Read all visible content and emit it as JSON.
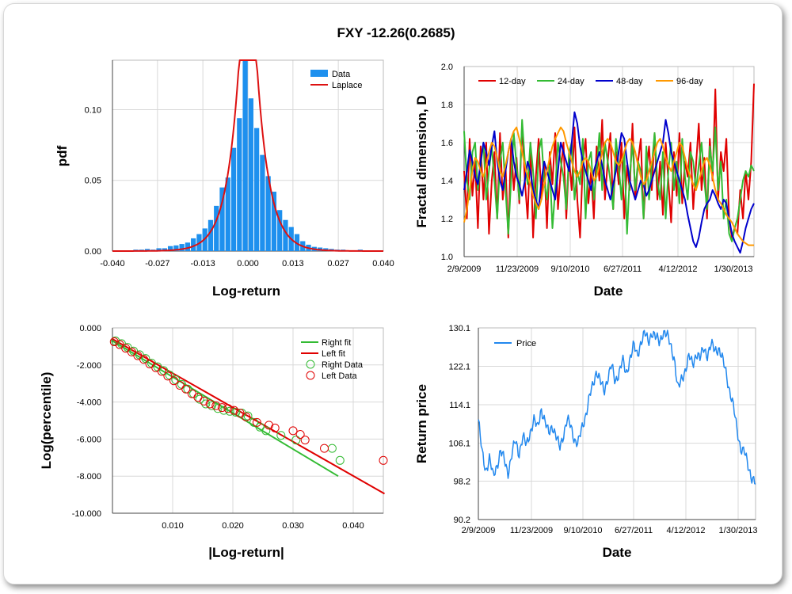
{
  "title": "FXY -12.26(0.2685)",
  "chart_data": [
    {
      "type": "bar",
      "xlabel": "Log-return",
      "ylabel": "pdf",
      "xlim": [
        -0.04,
        0.04
      ],
      "ylim": [
        0,
        0.135
      ],
      "xticks": [
        "-0.040",
        "-0.027",
        "-0.013",
        "0.000",
        "0.013",
        "0.027",
        "0.040"
      ],
      "yticks": [
        "0.00",
        "0.05",
        "0.10"
      ],
      "legend": [
        "Data",
        "Laplace"
      ],
      "bin_centers": [
        -0.0331,
        -0.0314,
        -0.0297,
        -0.028,
        -0.0263,
        -0.0246,
        -0.0229,
        -0.0212,
        -0.0195,
        -0.0178,
        -0.0161,
        -0.0144,
        -0.0127,
        -0.011,
        -0.0093,
        -0.0076,
        -0.0059,
        -0.0042,
        -0.0025,
        -0.0008,
        0.0009,
        0.0026,
        0.0043,
        0.006,
        0.0077,
        0.0094,
        0.0111,
        0.0128,
        0.0145,
        0.0162,
        0.0179,
        0.0196,
        0.0213,
        0.023,
        0.0247,
        0.0264,
        0.0281,
        0.0298,
        0.0315,
        0.0332,
        0.0349
      ],
      "values": [
        0.001,
        0.001,
        0.0015,
        0.001,
        0.002,
        0.002,
        0.0035,
        0.004,
        0.005,
        0.006,
        0.009,
        0.012,
        0.016,
        0.022,
        0.032,
        0.045,
        0.052,
        0.073,
        0.094,
        0.136,
        0.108,
        0.087,
        0.068,
        0.053,
        0.042,
        0.029,
        0.022,
        0.017,
        0.012,
        0.007,
        0.0045,
        0.003,
        0.0025,
        0.002,
        0.0015,
        0.001,
        0.001,
        0.0005,
        0.0005,
        0.001,
        0.0005
      ],
      "laplace": {
        "mu": 0.0,
        "b": 0.0037
      }
    },
    {
      "type": "line",
      "xlabel": "Date",
      "ylabel": "Fractal dimension, D",
      "ylim": [
        1.0,
        2.0
      ],
      "yticks": [
        "1.0",
        "1.2",
        "1.4",
        "1.6",
        "1.8",
        "2.0"
      ],
      "xticks": [
        "2/9/2009",
        "11/23/2009",
        "9/10/2010",
        "6/27/2011",
        "4/12/2012",
        "1/30/2013"
      ],
      "series": [
        {
          "name": "12-day",
          "color": "#e00000",
          "values": [
            1.45,
            1.2,
            1.62,
            1.32,
            1.5,
            1.15,
            1.58,
            1.3,
            1.6,
            1.12,
            1.4,
            1.55,
            1.2,
            1.65,
            1.3,
            1.48,
            1.1,
            1.6,
            1.35,
            1.52,
            1.28,
            1.7,
            1.4,
            1.2,
            1.6,
            1.1,
            1.42,
            1.62,
            1.3,
            1.5,
            1.15,
            1.55,
            1.38,
            1.65,
            1.25,
            1.45,
            1.6,
            1.2,
            1.52,
            1.35,
            1.68,
            1.3,
            1.1,
            1.5,
            1.62,
            1.28,
            1.45,
            1.2,
            1.58,
            1.4,
            1.72,
            1.3,
            1.5,
            1.65,
            1.25,
            1.55,
            1.38,
            1.6,
            1.2,
            1.48,
            1.35,
            1.7,
            1.3,
            1.5,
            1.62,
            1.2,
            1.45,
            1.58,
            1.35,
            1.65,
            1.3,
            1.5,
            1.22,
            1.6,
            1.4,
            1.18,
            1.55,
            1.32,
            1.65,
            1.28,
            1.5,
            1.42,
            1.6,
            1.25,
            1.48,
            1.7,
            1.35,
            1.52,
            1.2,
            1.62,
            1.4,
            1.88,
            1.3,
            1.55,
            1.45,
            1.62,
            1.2,
            1.1,
            1.15,
            1.12,
            1.35,
            1.2,
            1.45,
            1.3,
            1.5,
            1.91
          ]
        },
        {
          "name": "24-day",
          "color": "#33bb33",
          "values": [
            1.66,
            1.4,
            1.3,
            1.55,
            1.6,
            1.35,
            1.48,
            1.6,
            1.3,
            1.45,
            1.58,
            1.4,
            1.2,
            1.5,
            1.6,
            1.35,
            1.12,
            1.4,
            1.65,
            1.48,
            1.3,
            1.72,
            1.5,
            1.38,
            1.6,
            1.45,
            1.2,
            1.55,
            1.62,
            1.4,
            1.3,
            1.48,
            1.15,
            1.35,
            1.6,
            1.5,
            1.42,
            1.25,
            1.55,
            1.6,
            1.3,
            1.45,
            1.38,
            1.62,
            1.2,
            1.5,
            1.55,
            1.3,
            1.45,
            1.65,
            1.35,
            1.6,
            1.5,
            1.4,
            1.25,
            1.62,
            1.48,
            1.3,
            1.55,
            1.12,
            1.42,
            1.6,
            1.35,
            1.5,
            1.45,
            1.2,
            1.58,
            1.3,
            1.48,
            1.65,
            1.4,
            1.3,
            1.55,
            1.2,
            1.45,
            1.6,
            1.35,
            1.5,
            1.28,
            1.62,
            1.42,
            1.3,
            1.55,
            1.5,
            1.35,
            1.48,
            1.6,
            1.4,
            1.25,
            1.58,
            1.45,
            1.68,
            1.35,
            1.5,
            1.2,
            1.3,
            1.12,
            1.08,
            1.15,
            1.2,
            1.3,
            1.4,
            1.45,
            1.42,
            1.48,
            1.45
          ]
        },
        {
          "name": "48-day",
          "color": "#0000cc",
          "values": [
            1.35,
            1.45,
            1.56,
            1.5,
            1.42,
            1.38,
            1.5,
            1.6,
            1.55,
            1.48,
            1.58,
            1.66,
            1.5,
            1.4,
            1.35,
            1.45,
            1.55,
            1.62,
            1.5,
            1.42,
            1.38,
            1.32,
            1.4,
            1.5,
            1.45,
            1.35,
            1.3,
            1.25,
            1.4,
            1.5,
            1.45,
            1.4,
            1.35,
            1.3,
            1.45,
            1.6,
            1.55,
            1.5,
            1.45,
            1.6,
            1.76,
            1.7,
            1.58,
            1.5,
            1.45,
            1.4,
            1.35,
            1.45,
            1.5,
            1.55,
            1.48,
            1.4,
            1.35,
            1.3,
            1.38,
            1.45,
            1.55,
            1.65,
            1.62,
            1.5,
            1.4,
            1.35,
            1.3,
            1.35,
            1.4,
            1.38,
            1.32,
            1.35,
            1.4,
            1.45,
            1.5,
            1.55,
            1.6,
            1.72,
            1.65,
            1.55,
            1.5,
            1.45,
            1.4,
            1.35,
            1.3,
            1.22,
            1.15,
            1.08,
            1.05,
            1.1,
            1.18,
            1.25,
            1.28,
            1.3,
            1.35,
            1.32,
            1.28,
            1.25,
            1.3,
            1.28,
            1.2,
            1.12,
            1.08,
            1.05,
            1.02,
            1.08,
            1.15,
            1.2,
            1.25,
            1.28
          ]
        },
        {
          "name": "96-day",
          "color": "#ff9900",
          "values": [
            1.18,
            1.25,
            1.35,
            1.45,
            1.52,
            1.5,
            1.45,
            1.42,
            1.48,
            1.55,
            1.6,
            1.58,
            1.52,
            1.45,
            1.42,
            1.48,
            1.55,
            1.62,
            1.66,
            1.68,
            1.62,
            1.55,
            1.48,
            1.42,
            1.38,
            1.32,
            1.28,
            1.25,
            1.3,
            1.38,
            1.45,
            1.52,
            1.58,
            1.62,
            1.65,
            1.68,
            1.66,
            1.6,
            1.55,
            1.5,
            1.45,
            1.42,
            1.45,
            1.5,
            1.52,
            1.5,
            1.45,
            1.4,
            1.42,
            1.48,
            1.55,
            1.6,
            1.62,
            1.6,
            1.55,
            1.5,
            1.48,
            1.5,
            1.55,
            1.6,
            1.62,
            1.6,
            1.55,
            1.48,
            1.42,
            1.38,
            1.4,
            1.45,
            1.5,
            1.55,
            1.6,
            1.62,
            1.58,
            1.52,
            1.48,
            1.45,
            1.5,
            1.55,
            1.6,
            1.58,
            1.52,
            1.46,
            1.42,
            1.38,
            1.35,
            1.4,
            1.45,
            1.5,
            1.52,
            1.48,
            1.42,
            1.35,
            1.3,
            1.28,
            1.25,
            1.22,
            1.2,
            1.18,
            1.15,
            1.12,
            1.1,
            1.08,
            1.07,
            1.06,
            1.06,
            1.06
          ]
        }
      ]
    },
    {
      "type": "scatter",
      "xlabel": "|Log-return|",
      "ylabel": "Log(percentile)",
      "xlim": [
        0.0,
        0.045
      ],
      "ylim": [
        -10.0,
        0.0
      ],
      "xticks": [
        "0.010",
        "0.020",
        "0.030",
        "0.040"
      ],
      "yticks": [
        "0.000",
        "-2.000",
        "-4.000",
        "-6.000",
        "-8.000",
        "-10.000"
      ],
      "legend": [
        "Right fit",
        "Left fit",
        "Right Data",
        "Left Data"
      ],
      "right_fit": {
        "x": [
          0.0,
          0.0375
        ],
        "y": [
          -0.7,
          -8.0
        ],
        "color": "#33bb33"
      },
      "left_fit": {
        "x": [
          0.0,
          0.0452
        ],
        "y": [
          -0.6,
          -8.95
        ],
        "color": "#e00000"
      },
      "right_data": {
        "x": [
          0.0005,
          0.0015,
          0.0025,
          0.0035,
          0.0045,
          0.0055,
          0.0065,
          0.0075,
          0.0085,
          0.0095,
          0.0105,
          0.0115,
          0.0125,
          0.0135,
          0.0145,
          0.0155,
          0.0165,
          0.0175,
          0.0185,
          0.0195,
          0.0205,
          0.0215,
          0.0225,
          0.0235,
          0.0245,
          0.0255,
          0.028,
          0.0305,
          0.0365,
          0.0378
        ],
        "y": [
          -0.7,
          -0.85,
          -1.05,
          -1.25,
          -1.45,
          -1.65,
          -1.9,
          -2.1,
          -2.3,
          -2.55,
          -2.8,
          -3.05,
          -3.3,
          -3.55,
          -3.85,
          -4.1,
          -4.2,
          -4.35,
          -4.45,
          -4.5,
          -4.55,
          -4.6,
          -4.75,
          -5.1,
          -5.35,
          -5.55,
          -5.8,
          -6.05,
          -6.5,
          -7.15
        ]
      },
      "left_data": {
        "x": [
          0.0003,
          0.0012,
          0.0022,
          0.0032,
          0.0042,
          0.0052,
          0.0062,
          0.0072,
          0.0082,
          0.0092,
          0.0102,
          0.0112,
          0.0122,
          0.0132,
          0.0142,
          0.0152,
          0.0162,
          0.0172,
          0.0182,
          0.0192,
          0.0202,
          0.0212,
          0.0222,
          0.024,
          0.026,
          0.027,
          0.03,
          0.0312,
          0.032,
          0.0352,
          0.045
        ],
        "y": [
          -0.75,
          -0.9,
          -1.1,
          -1.3,
          -1.5,
          -1.7,
          -1.95,
          -2.15,
          -2.35,
          -2.6,
          -2.85,
          -3.1,
          -3.3,
          -3.55,
          -3.75,
          -3.95,
          -4.1,
          -4.2,
          -4.3,
          -4.35,
          -4.45,
          -4.6,
          -4.8,
          -5.1,
          -5.25,
          -5.4,
          -5.55,
          -5.75,
          -6.05,
          -6.5,
          -7.15
        ]
      }
    },
    {
      "type": "line",
      "xlabel": "Date",
      "ylabel": "Return price",
      "ylim": [
        90.2,
        130.1
      ],
      "yticks": [
        "130.1",
        "122.1",
        "114.1",
        "106.1",
        "98.2",
        "90.2"
      ],
      "xticks": [
        "2/9/2009",
        "11/23/2009",
        "9/10/2010",
        "6/27/2011",
        "4/12/2012",
        "1/30/2013"
      ],
      "series": [
        {
          "name": "Price",
          "color": "#2288ee",
          "values": [
            111.0,
            104.0,
            100.5,
            103.0,
            99.0,
            101.5,
            104.5,
            102.5,
            100.0,
            103.5,
            106.5,
            104.0,
            107.5,
            105.5,
            108.5,
            111.0,
            109.0,
            113.5,
            110.5,
            108.0,
            110.0,
            107.5,
            105.0,
            108.0,
            111.0,
            109.5,
            107.0,
            106.0,
            109.0,
            112.0,
            115.5,
            118.0,
            121.5,
            119.0,
            116.5,
            120.0,
            122.5,
            118.5,
            121.0,
            123.5,
            120.0,
            124.0,
            126.5,
            124.0,
            127.5,
            129.0,
            127.0,
            129.5,
            128.0,
            127.0,
            129.5,
            128.5,
            126.5,
            124.0,
            117.0,
            119.5,
            121.5,
            124.0,
            122.5,
            125.0,
            123.5,
            126.0,
            124.5,
            126.5,
            125.5,
            126.0,
            123.5,
            121.0,
            117.0,
            113.5,
            109.0,
            105.0,
            104.0,
            101.5,
            99.0,
            97.5
          ]
        }
      ]
    }
  ]
}
